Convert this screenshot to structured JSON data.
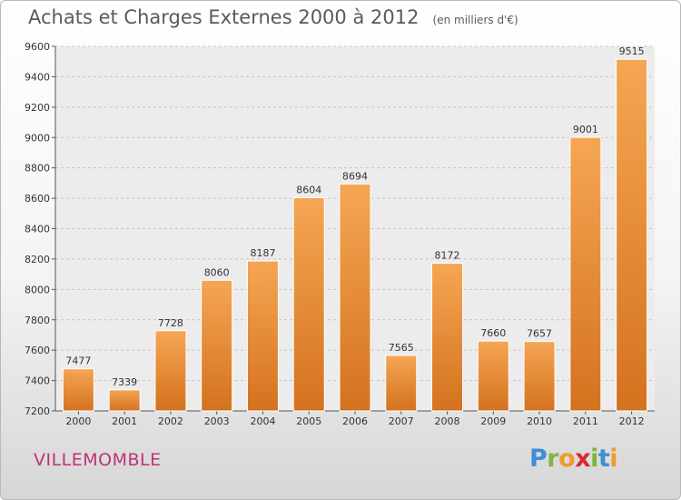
{
  "header": {
    "title": "Achats et Charges Externes 2000 à 2012",
    "unit": "(en milliers d'€)"
  },
  "footer": {
    "city": "VILLEMOMBLE",
    "logo": [
      "P",
      "r",
      "o",
      "x",
      "i",
      "t",
      "i"
    ]
  },
  "colors": {
    "bar_top": "#f5a654",
    "bar_bottom": "#d4721e",
    "title": "#5a5a5a",
    "city": "#c0307a"
  },
  "chart_data": {
    "type": "bar",
    "title": "Achats et Charges Externes 2000 à 2012",
    "subtitle": "(en milliers d'€)",
    "xlabel": "",
    "ylabel": "",
    "categories": [
      "2000",
      "2001",
      "2002",
      "2003",
      "2004",
      "2005",
      "2006",
      "2007",
      "2008",
      "2009",
      "2010",
      "2011",
      "2012"
    ],
    "values": [
      7477,
      7339,
      7728,
      8060,
      8187,
      8604,
      8694,
      7565,
      8172,
      7660,
      7657,
      9001,
      9515
    ],
    "ylim": [
      7200,
      9600
    ],
    "yticks": [
      7200,
      7400,
      7600,
      7800,
      8000,
      8200,
      8400,
      8600,
      8800,
      9000,
      9200,
      9400,
      9600
    ],
    "grid": "horizontal dashed",
    "legend": "none"
  }
}
